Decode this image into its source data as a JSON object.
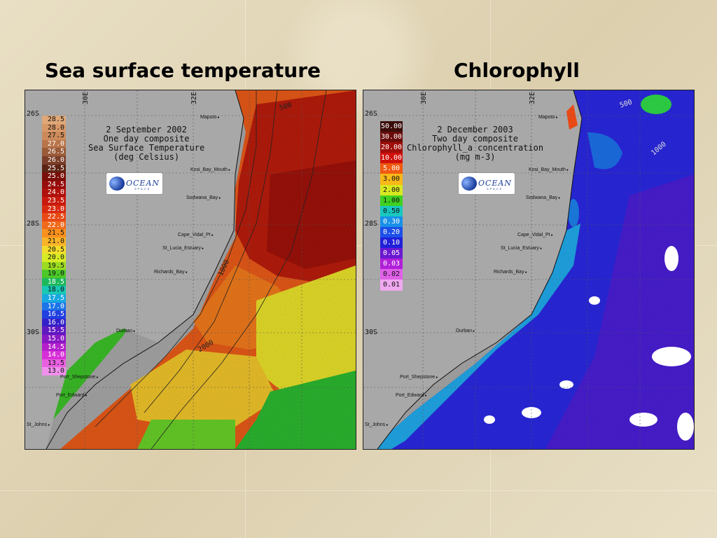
{
  "titles": {
    "left": "Sea surface temperature",
    "right": "Chlorophyll"
  },
  "sst_map": {
    "caption_lines": [
      "2 September 2002",
      "One day composite",
      "Sea Surface Temperature",
      "(deg Celsius)"
    ],
    "lat_labels": [
      "26S",
      "28S",
      "30S"
    ],
    "lon_labels": [
      "30E",
      "32E"
    ],
    "places": [
      "Maputo",
      "Kosi_Bay_Mouth",
      "Sodwana_Bay",
      "Cape_Vidal_Pt",
      "St_Lucia_Estuary",
      "Richards_Bay",
      "Durban",
      "Port_Shepstone",
      "Port_Edward",
      "St_Johns"
    ],
    "depth_labels": [
      "500",
      "1000",
      "2000"
    ],
    "legend": [
      {
        "v": "28.5",
        "c": "#e0a878"
      },
      {
        "v": "28.0",
        "c": "#d99868"
      },
      {
        "v": "27.5",
        "c": "#cc8a5a"
      },
      {
        "v": "27.0",
        "c": "#b8744a"
      },
      {
        "v": "26.5",
        "c": "#9a5a38"
      },
      {
        "v": "26.0",
        "c": "#7a3e28"
      },
      {
        "v": "25.5",
        "c": "#5c2414"
      },
      {
        "v": "25.0",
        "c": "#7a0e08"
      },
      {
        "v": "24.5",
        "c": "#960c0a"
      },
      {
        "v": "24.0",
        "c": "#b0100a"
      },
      {
        "v": "23.5",
        "c": "#c81a0c"
      },
      {
        "v": "23.0",
        "c": "#d82a10"
      },
      {
        "v": "22.5",
        "c": "#e84a16"
      },
      {
        "v": "22.0",
        "c": "#f06a1c"
      },
      {
        "v": "21.5",
        "c": "#f8901e"
      },
      {
        "v": "21.0",
        "c": "#fab428"
      },
      {
        "v": "20.5",
        "c": "#f4dc2c"
      },
      {
        "v": "20.0",
        "c": "#d8ec24"
      },
      {
        "v": "19.5",
        "c": "#9cdc20"
      },
      {
        "v": "19.0",
        "c": "#4cc828"
      },
      {
        "v": "18.5",
        "c": "#1cb85c"
      },
      {
        "v": "18.0",
        "c": "#18c8b4"
      },
      {
        "v": "17.5",
        "c": "#18a8e0"
      },
      {
        "v": "17.0",
        "c": "#1c74e8"
      },
      {
        "v": "16.5",
        "c": "#2040e0"
      },
      {
        "v": "16.0",
        "c": "#3420c8"
      },
      {
        "v": "15.5",
        "c": "#6018c0"
      },
      {
        "v": "15.0",
        "c": "#8818c4"
      },
      {
        "v": "14.5",
        "c": "#b420cc"
      },
      {
        "v": "14.0",
        "c": "#d830d8"
      },
      {
        "v": "13.5",
        "c": "#e860e0"
      },
      {
        "v": "13.0",
        "c": "#f090ec"
      }
    ]
  },
  "chl_map": {
    "caption_lines": [
      "2 December 2003",
      "Two day composite",
      "Chlorophyll_a concentration",
      "(mg m-3)"
    ],
    "lat_labels": [
      "26S",
      "28S",
      "30S"
    ],
    "lon_labels": [
      "30E",
      "32E"
    ],
    "places": [
      "Maputo",
      "Kosi_Bay_Mouth",
      "Sodwana_Bay",
      "Cape_Vidal_Pt",
      "St_Lucia_Estuary",
      "Richards_Bay",
      "Durban",
      "Port_Shepstone",
      "Port_Edward",
      "St_Johns"
    ],
    "depth_labels": [
      "500",
      "1000"
    ],
    "legend": [
      {
        "v": "50.00",
        "c": "#3a0c08"
      },
      {
        "v": "30.00",
        "c": "#6a0c0a"
      },
      {
        "v": "20.00",
        "c": "#a00e0a"
      },
      {
        "v": "10.00",
        "c": "#d0120c"
      },
      {
        "v": "5.00",
        "c": "#f05a10"
      },
      {
        "v": "3.00",
        "c": "#f8b818"
      },
      {
        "v": "2.00",
        "c": "#d8e820"
      },
      {
        "v": "1.00",
        "c": "#40d020"
      },
      {
        "v": "0.50",
        "c": "#18c8c0"
      },
      {
        "v": "0.30",
        "c": "#1890e8"
      },
      {
        "v": "0.20",
        "c": "#1c50e8"
      },
      {
        "v": "0.10",
        "c": "#2020d8"
      },
      {
        "v": "0.05",
        "c": "#6a18d0"
      },
      {
        "v": "0.03",
        "c": "#b020d8"
      },
      {
        "v": "0.02",
        "c": "#e060e8"
      },
      {
        "v": "0.01",
        "c": "#f0a8f0"
      }
    ]
  },
  "logo": {
    "text": "OCEAN",
    "sub": "SPACE"
  },
  "colors": {
    "land": "#a8a8a8",
    "sst_warm": "#c42a0c",
    "chl_ocean": "#2a2ae0"
  }
}
